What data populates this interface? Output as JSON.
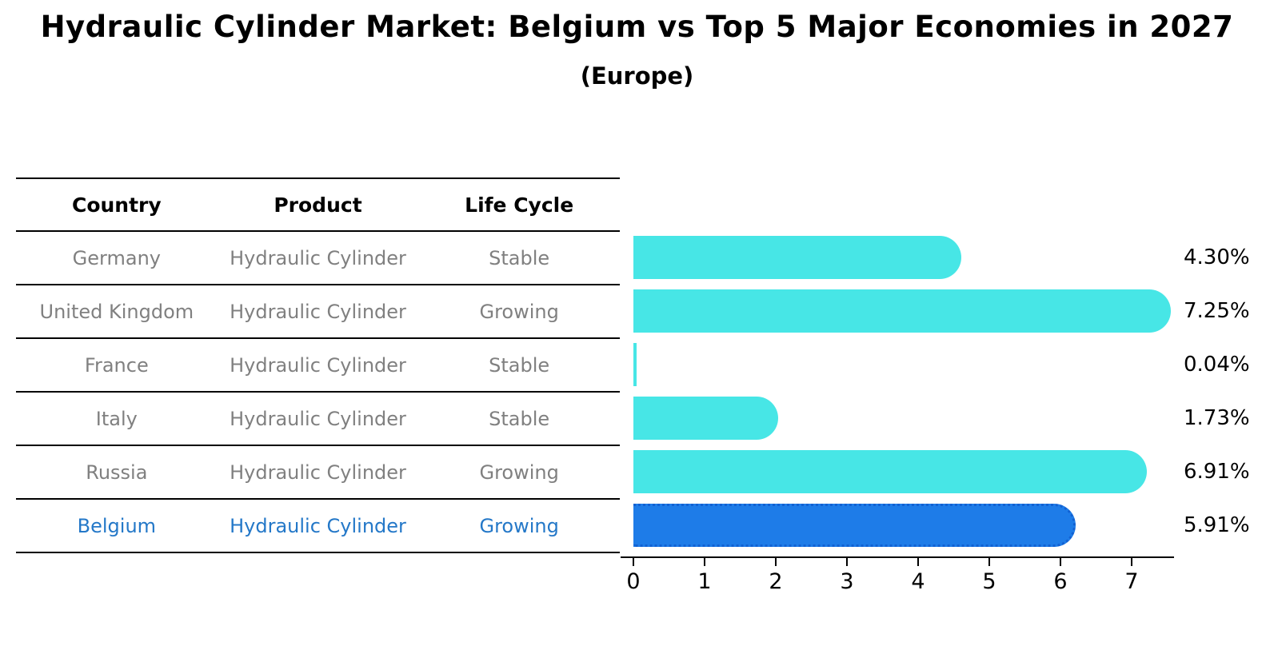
{
  "title": "Hydraulic Cylinder Market: Belgium vs Top 5 Major Economies in 2027",
  "subtitle": "(Europe)",
  "colors": {
    "bar_default": "#47E6E6",
    "bar_highlight": "#1E7CE8",
    "bar_highlight_edge": "#1261D2",
    "highlight_text": "#2478C8",
    "row_text": "#808080",
    "axis": "#000000"
  },
  "table": {
    "headers": [
      "Country",
      "Product",
      "Life Cycle"
    ],
    "rows": [
      {
        "country": "Germany",
        "product": "Hydraulic Cylinder",
        "life_cycle": "Stable",
        "value_label": "4.30%"
      },
      {
        "country": "United Kingdom",
        "product": "Hydraulic Cylinder",
        "life_cycle": "Growing",
        "value_label": "7.25%"
      },
      {
        "country": "France",
        "product": "Hydraulic Cylinder",
        "life_cycle": "Stable",
        "value_label": "0.04%"
      },
      {
        "country": "Italy",
        "product": "Hydraulic Cylinder",
        "life_cycle": "Stable",
        "value_label": "1.73%"
      },
      {
        "country": "Russia",
        "product": "Hydraulic Cylinder",
        "life_cycle": "Growing",
        "value_label": "6.91%"
      },
      {
        "country": "Belgium",
        "product": "Hydraulic Cylinder",
        "life_cycle": "Growing",
        "value_label": "5.91%"
      }
    ]
  },
  "chart_data": {
    "type": "bar",
    "orientation": "horizontal",
    "title": "Hydraulic Cylinder Market: Belgium vs Top 5 Major Economies in 2027 (Europe)",
    "categories": [
      "Germany",
      "United Kingdom",
      "France",
      "Italy",
      "Russia",
      "Belgium"
    ],
    "values": [
      4.3,
      7.25,
      0.04,
      1.73,
      6.91,
      5.91
    ],
    "value_labels": [
      "4.30%",
      "7.25%",
      "0.04%",
      "1.73%",
      "6.91%",
      "5.91%"
    ],
    "unit": "%",
    "highlight_index": 5,
    "x_ticks": [
      0,
      1,
      2,
      3,
      4,
      5,
      6,
      7
    ],
    "xlim": [
      0,
      7.6
    ],
    "grid": false,
    "legend": false,
    "xlabel": "",
    "ylabel": ""
  }
}
